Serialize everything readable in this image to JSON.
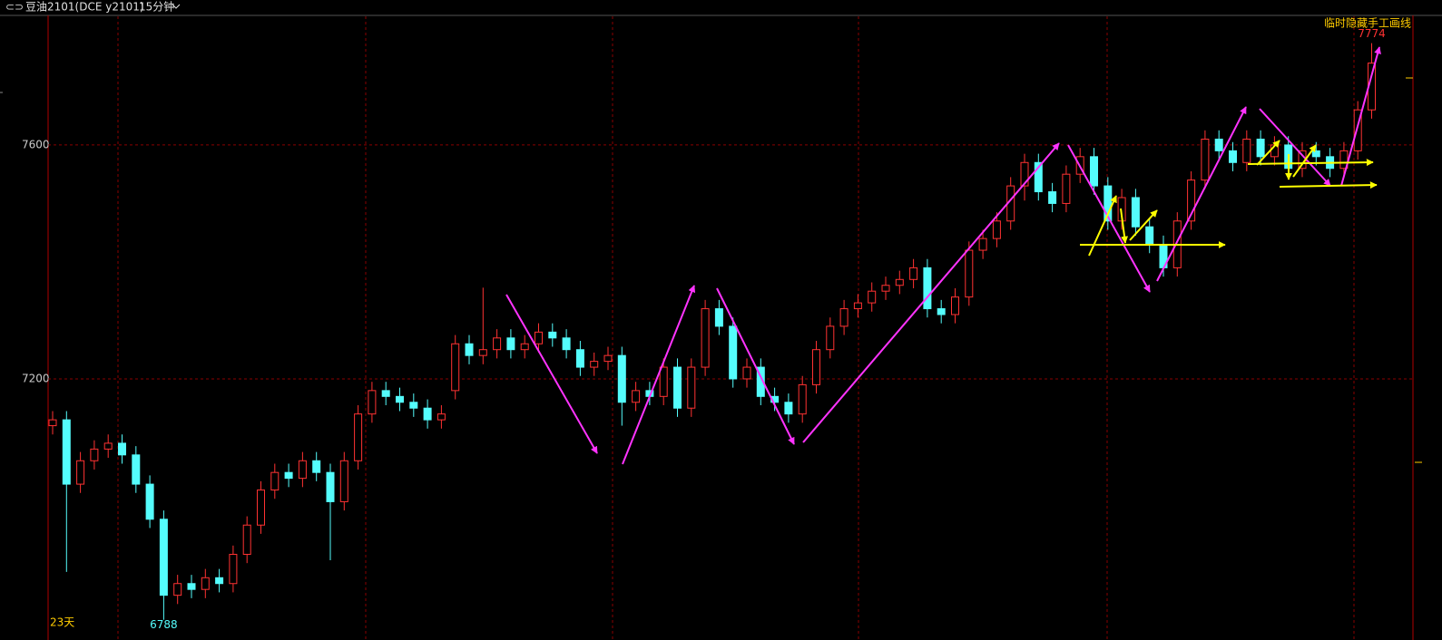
{
  "header": {
    "title": "豆油2101(DCE y2101)",
    "period": "15分钟"
  },
  "chart_data": {
    "type": "candlestick",
    "up_color": "#ff3232",
    "down_color": "#54fcfc",
    "grid": true,
    "ylim": [
      6769,
      7820
    ],
    "yticks": [
      7200,
      7600
    ],
    "open": [
      7120,
      7130,
      7020,
      7060,
      7080,
      7090,
      7070,
      7020,
      6960,
      6830,
      6850,
      6840,
      6860,
      6850,
      6900,
      6950,
      7010,
      7040,
      7030,
      7060,
      7040,
      6990,
      7060,
      7140,
      7180,
      7170,
      7160,
      7150,
      7130,
      7180,
      7260,
      7240,
      7250,
      7270,
      7250,
      7260,
      7280,
      7270,
      7250,
      7220,
      7230,
      7240,
      7160,
      7180,
      7170,
      7220,
      7150,
      7220,
      7320,
      7290,
      7200,
      7220,
      7170,
      7160,
      7140,
      7190,
      7250,
      7290,
      7320,
      7330,
      7350,
      7360,
      7370,
      7390,
      7320,
      7310,
      7340,
      7420,
      7440,
      7470,
      7530,
      7570,
      7520,
      7500,
      7550,
      7580,
      7530,
      7470,
      7510,
      7460,
      7430,
      7390,
      7470,
      7540,
      7610,
      7590,
      7570,
      7610,
      7580,
      7600,
      7560,
      7590,
      7580,
      7560,
      7590,
      7660
    ],
    "high": [
      7145,
      7145,
      7075,
      7095,
      7105,
      7105,
      7085,
      7035,
      6975,
      6865,
      6865,
      6875,
      6875,
      6915,
      6965,
      7025,
      7055,
      7055,
      7075,
      7075,
      7055,
      7075,
      7155,
      7195,
      7195,
      7185,
      7175,
      7165,
      7155,
      7275,
      7275,
      7356,
      7285,
      7285,
      7275,
      7295,
      7295,
      7285,
      7265,
      7245,
      7255,
      7255,
      7195,
      7195,
      7235,
      7235,
      7235,
      7335,
      7335,
      7305,
      7235,
      7235,
      7185,
      7175,
      7205,
      7265,
      7305,
      7335,
      7345,
      7365,
      7375,
      7385,
      7405,
      7405,
      7335,
      7355,
      7435,
      7455,
      7485,
      7545,
      7585,
      7585,
      7535,
      7565,
      7595,
      7595,
      7545,
      7525,
      7525,
      7475,
      7445,
      7485,
      7555,
      7625,
      7625,
      7605,
      7625,
      7625,
      7615,
      7615,
      7605,
      7605,
      7595,
      7605,
      7675,
      7774
    ],
    "low": [
      7105,
      6870,
      7005,
      7045,
      7065,
      7055,
      7005,
      6945,
      6788,
      6815,
      6825,
      6825,
      6835,
      6835,
      6885,
      6935,
      6995,
      7015,
      7015,
      7025,
      6890,
      6975,
      7045,
      7125,
      7155,
      7145,
      7135,
      7115,
      7115,
      7165,
      7225,
      7225,
      7235,
      7235,
      7235,
      7245,
      7255,
      7235,
      7205,
      7205,
      7215,
      7120,
      7145,
      7155,
      7155,
      7135,
      7135,
      7205,
      7275,
      7185,
      7185,
      7155,
      7145,
      7125,
      7125,
      7175,
      7235,
      7275,
      7305,
      7315,
      7335,
      7345,
      7355,
      7305,
      7295,
      7295,
      7325,
      7405,
      7425,
      7455,
      7505,
      7505,
      7485,
      7485,
      7535,
      7515,
      7455,
      7455,
      7445,
      7415,
      7375,
      7375,
      7455,
      7525,
      7575,
      7555,
      7555,
      7565,
      7565,
      7545,
      7545,
      7565,
      7545,
      7545,
      7575,
      7645
    ],
    "close": [
      7130,
      7020,
      7060,
      7080,
      7090,
      7070,
      7020,
      6960,
      6830,
      6850,
      6840,
      6860,
      6850,
      6900,
      6950,
      7010,
      7040,
      7030,
      7060,
      7040,
      6990,
      7060,
      7140,
      7180,
      7170,
      7160,
      7150,
      7130,
      7140,
      7260,
      7240,
      7250,
      7270,
      7250,
      7260,
      7280,
      7270,
      7250,
      7220,
      7230,
      7240,
      7160,
      7180,
      7170,
      7220,
      7150,
      7220,
      7320,
      7290,
      7200,
      7220,
      7170,
      7160,
      7140,
      7190,
      7250,
      7290,
      7320,
      7330,
      7350,
      7360,
      7370,
      7390,
      7320,
      7310,
      7340,
      7420,
      7440,
      7470,
      7530,
      7570,
      7520,
      7500,
      7550,
      7580,
      7530,
      7470,
      7510,
      7460,
      7430,
      7390,
      7470,
      7540,
      7610,
      7590,
      7570,
      7610,
      7580,
      7600,
      7560,
      7590,
      7580,
      7560,
      7590,
      7660,
      7740
    ],
    "footnote": "23天",
    "toggle_label": "临时隐藏手工画线"
  }
}
